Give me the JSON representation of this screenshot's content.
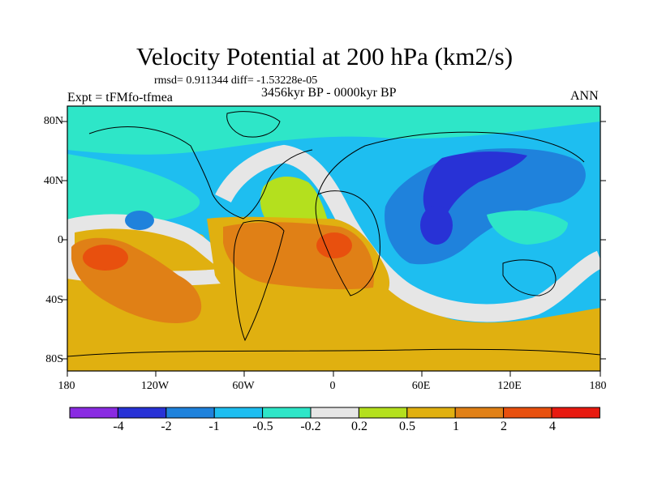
{
  "title": "Velocity Potential at 200 hPa (km2/s)",
  "stats_line": "rmsd= 0.911344 diff= -1.53228e-05",
  "experiment": "Expt = tFMfo-tfmea",
  "period": "3456kyr BP - 0000kyr BP",
  "season": "ANN",
  "y_tick_labels": [
    "80N",
    "40N",
    "0",
    "40S",
    "80S"
  ],
  "x_tick_labels": [
    "180",
    "120W",
    "60W",
    "0",
    "60E",
    "120E",
    "180"
  ],
  "colorbar": {
    "colors": [
      "#8a2be2",
      "#2832d6",
      "#1f82dc",
      "#1ebef0",
      "#2ee6c8",
      "#e6e6e6",
      "#b4e01e",
      "#e0b010",
      "#e08016",
      "#e8500e",
      "#e81a10"
    ],
    "labels": [
      "-4",
      "-2",
      "-1",
      "-0.5",
      "-0.2",
      "0.2",
      "0.5",
      "1",
      "2",
      "4"
    ]
  }
}
